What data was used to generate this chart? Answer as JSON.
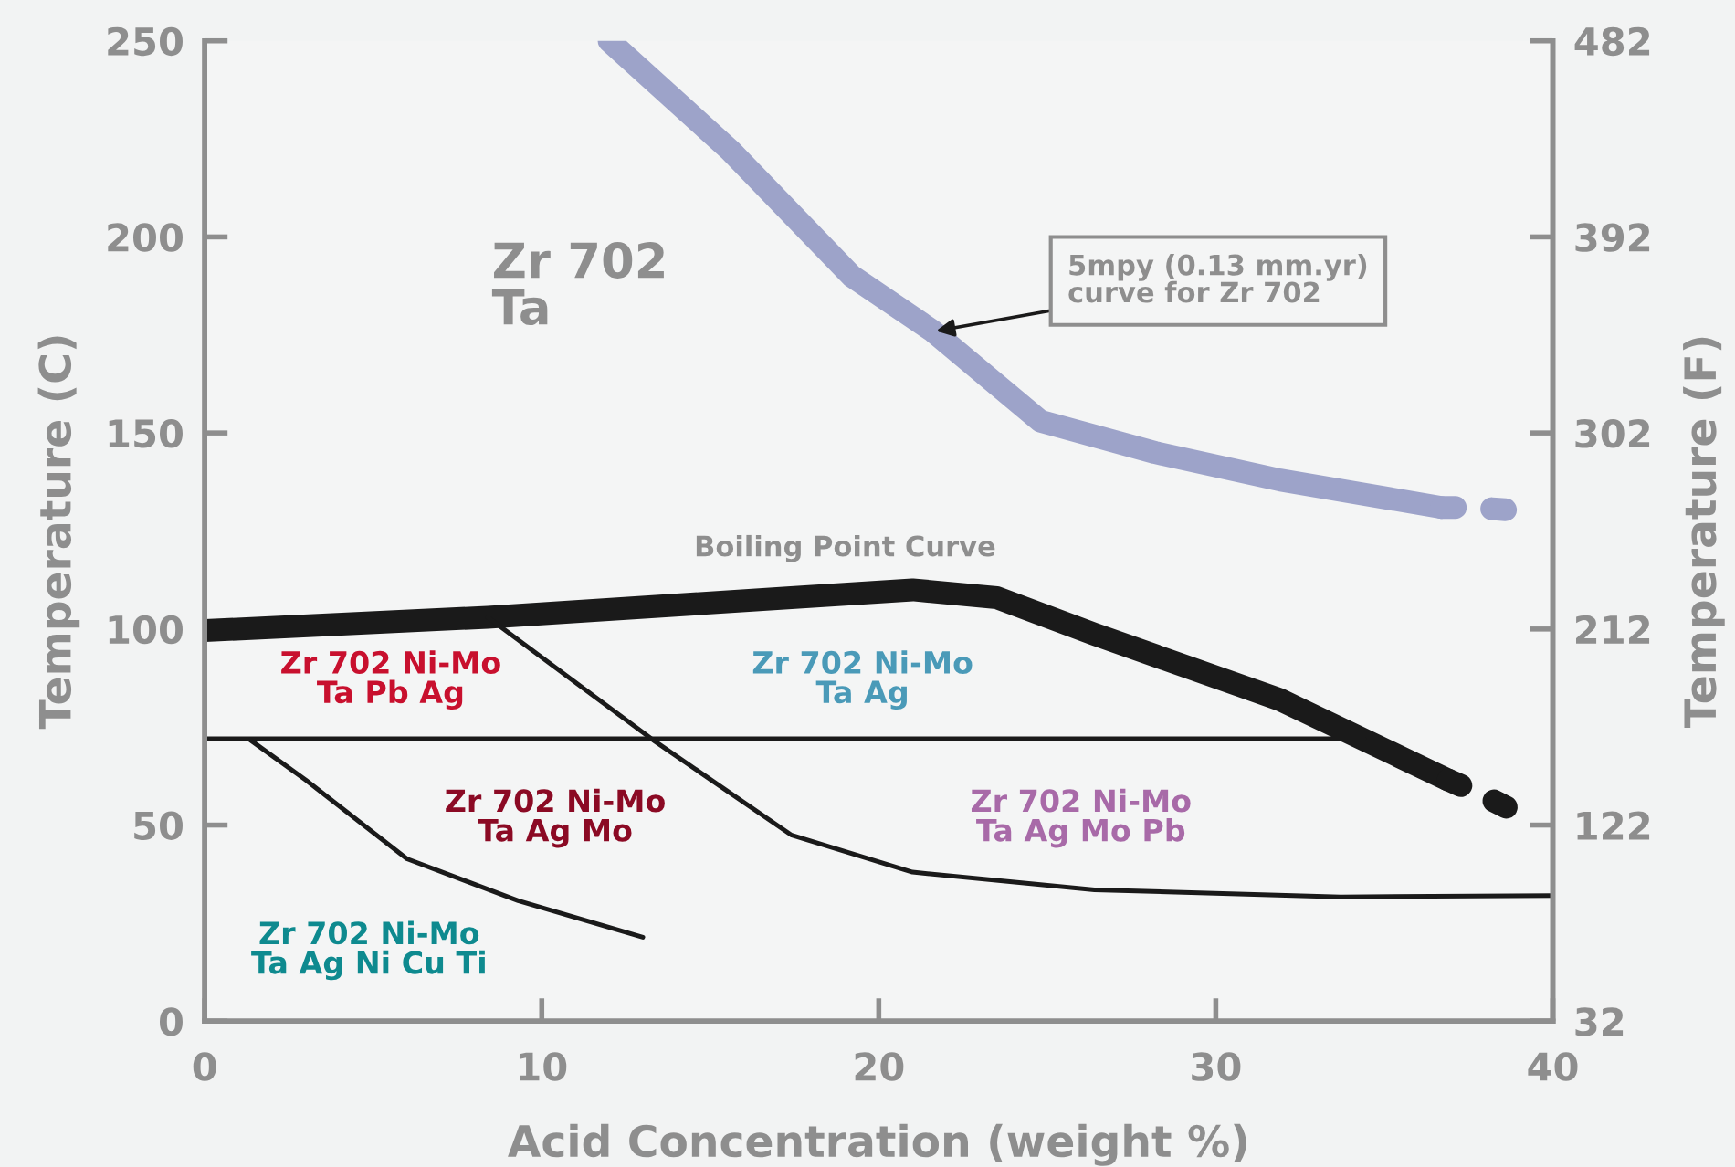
{
  "chart_data": {
    "type": "line",
    "xlabel": "Acid Concentration (weight %)",
    "ylabel": "Temperature (C)",
    "y2label": "Temperature (F)",
    "xlim": [
      0,
      40
    ],
    "xticks": [
      0,
      10,
      20,
      30,
      40
    ],
    "ylim": [
      0,
      250
    ],
    "yticks": [
      0,
      50,
      100,
      150,
      200,
      250
    ],
    "y2lim": [
      32,
      482
    ],
    "y2ticks": [
      32,
      122,
      212,
      302,
      392,
      482
    ],
    "grid": false,
    "legend": false,
    "marker": "none",
    "series": [
      {
        "color": "#9da3c9",
        "line_style": "solid",
        "x": [
          12.0,
          15.6,
          19.2,
          21.6,
          24.8,
          28.2,
          31.9,
          36.7
        ],
        "values": [
          250,
          222,
          190,
          176,
          153,
          145,
          138,
          131
        ]
      },
      {
        "color": "#9da3c9",
        "line_style": "dotted",
        "x": [
          36.7,
          37.7,
          39.2
        ],
        "values": [
          131,
          131,
          130
        ]
      },
      {
        "color": "#1a1a1a",
        "line_style": "solid",
        "x": [
          0,
          8.4,
          17.4,
          21,
          23.5,
          26.4,
          31.9,
          36.9
        ],
        "values": [
          99.6,
          103,
          108,
          110,
          108,
          98.7,
          82,
          61.5
        ]
      },
      {
        "color": "#1a1a1a",
        "line_style": "dotted",
        "x": [
          36.9,
          37.9,
          39.2
        ],
        "values": [
          61.5,
          57.7,
          52
        ]
      },
      {
        "color": "#1a1a1a",
        "line_style": "solid",
        "x": [
          0,
          34.4
        ],
        "values": [
          72,
          72
        ]
      },
      {
        "color": "#1a1a1a",
        "line_style": "solid",
        "x": [
          8.4,
          13.3,
          17.4,
          21,
          26.4,
          33.7,
          40
        ],
        "values": [
          103,
          71.7,
          47.5,
          38,
          33.5,
          31.7,
          32
        ]
      },
      {
        "color": "#1a1a1a",
        "line_style": "solid",
        "x": [
          1.35,
          3.0,
          6.0,
          9.3,
          13.0
        ],
        "values": [
          71.7,
          61.5,
          41.4,
          30.7,
          21.4
        ]
      }
    ],
    "annotations": [
      "Zr 702\nTa",
      "Boiling Point Curve",
      {
        "text": "5mpy (0.13 mm.yr)\ncurve for Zr 702",
        "x": 21.7,
        "y": 176
      },
      "Zr 702 Ni-Mo\nTa Pb Ag",
      "Zr 702 Ni-Mo\nTa Ag",
      "Zr 702 Ni-Mo\nTa Ag Mo",
      "Zr 702 Ni-Mo\nTa Ag Mo Pb",
      "Zr 702 Ni-Mo\nTa Ag Ni Cu Ti"
    ]
  }
}
